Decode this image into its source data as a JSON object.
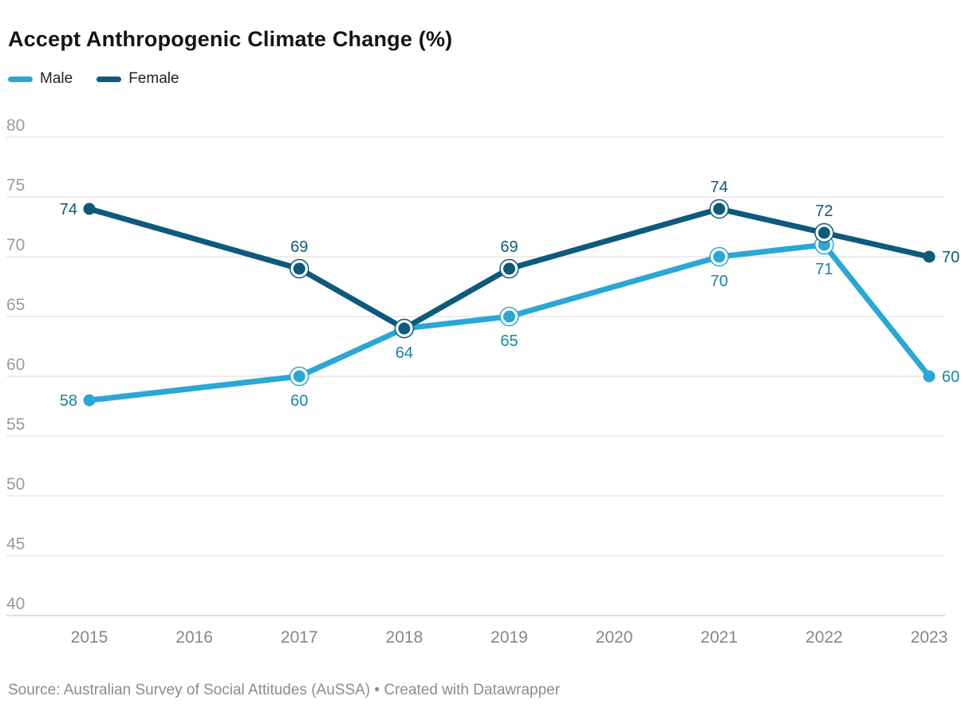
{
  "header": {
    "title": "Accept Anthropogenic Climate Change (%)"
  },
  "legend": {
    "items": [
      {
        "label": "Male",
        "color": "#2aa7d4"
      },
      {
        "label": "Female",
        "color": "#0d5a7c"
      }
    ]
  },
  "chart_data": {
    "type": "line",
    "title": "Accept Anthropogenic Climate Change (%)",
    "x": [
      2015,
      2016,
      2017,
      2018,
      2019,
      2020,
      2021,
      2022,
      2023
    ],
    "series": [
      {
        "name": "Male",
        "color": "#2aa7d4",
        "label_color": "#1a82ab",
        "values": [
          58,
          null,
          60,
          64,
          65,
          null,
          70,
          71,
          60
        ],
        "label_positions": [
          "left",
          null,
          "below",
          "below",
          "below",
          null,
          "below",
          "below",
          "right"
        ]
      },
      {
        "name": "Female",
        "color": "#0d5a7c",
        "label_color": "#0d5a7c",
        "values": [
          74,
          null,
          69,
          64,
          69,
          null,
          74,
          72,
          70
        ],
        "label_positions": [
          "left",
          null,
          "above",
          null,
          "above",
          null,
          "above",
          "above",
          "right"
        ]
      }
    ],
    "ylim": [
      40,
      80
    ],
    "yticks": [
      40,
      45,
      50,
      55,
      60,
      65,
      70,
      75,
      80
    ],
    "grid": "horizontal",
    "legend_position": "top-left",
    "ylabel": "",
    "xlabel": ""
  },
  "footer": {
    "text": "Source: Australian Survey of Social Attitudes (AuSSA) • Created with Datawrapper"
  },
  "colors": {
    "grid": "#e2e2e2",
    "baseline": "#cccccc",
    "y_tick_label": "#9b9b9b",
    "x_tick_label": "#878787",
    "background": "#ffffff",
    "halo": "#ffffff"
  }
}
